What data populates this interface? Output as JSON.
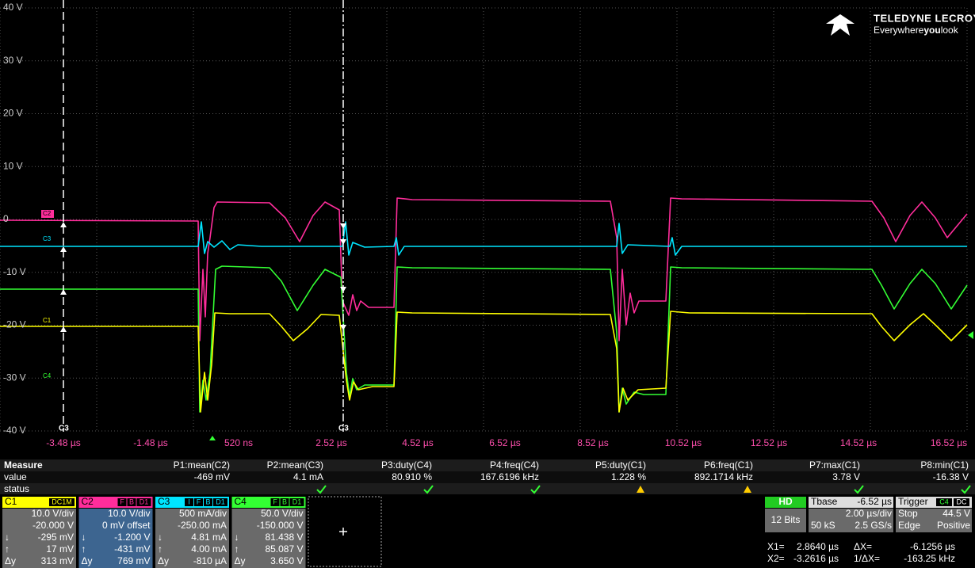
{
  "logo": {
    "brand": "TELEDYNE LECROY",
    "tagline": [
      "Everywhere",
      "you",
      "look"
    ]
  },
  "grid": {
    "y_labels": [
      "40 V",
      "30 V",
      "20 V",
      "10 V",
      "0",
      "-10 V",
      "-20 V",
      "-30 V",
      "-40 V"
    ],
    "x_labels": [
      "-3.48 µs",
      "-1.48 µs",
      "520 ns",
      "2.52 µs",
      "4.52 µs",
      "6.52 µs",
      "8.52 µs",
      "10.52 µs",
      "12.52 µs",
      "14.52 µs",
      "16.52 µs"
    ]
  },
  "trace_labels": [
    "C2",
    "C3",
    "C1",
    "C4"
  ],
  "cursor_labels": [
    "C3",
    "C3"
  ],
  "measure": {
    "header": [
      "Measure",
      "P1:mean(C2)",
      "P2:mean(C3)",
      "P3:duty(C4)",
      "P4:freq(C4)",
      "P5:duty(C1)",
      "P6:freq(C1)",
      "P7:max(C1)",
      "P8:min(C1)"
    ],
    "value": [
      "value",
      "-469 mV",
      "4.1 mA",
      "80.910 %",
      "167.6196 kHz",
      "1.228 %",
      "892.1714 kHz",
      "3.78 V",
      "-16.38 V"
    ],
    "status": "status"
  },
  "channels": [
    {
      "name": "C1",
      "badges": [
        "DC1M"
      ],
      "rows": [
        [
          "10.0 V/div"
        ],
        [
          "-20.000 V"
        ],
        [
          "↓",
          "-295 mV"
        ],
        [
          "↑",
          "17 mV"
        ],
        [
          "Δy",
          "313 mV"
        ]
      ]
    },
    {
      "name": "C2",
      "badges": [
        "F",
        "B",
        "D1"
      ],
      "rows": [
        [
          "10.0 V/div"
        ],
        [
          "0 mV offset"
        ],
        [
          "↓",
          "-1.200 V"
        ],
        [
          "↑",
          "-431 mV"
        ],
        [
          "Δy",
          "769 mV"
        ]
      ]
    },
    {
      "name": "C3",
      "badges": [
        "I",
        "F",
        "B",
        "D1"
      ],
      "rows": [
        [
          "500 mA/div"
        ],
        [
          "-250.00 mA"
        ],
        [
          "↓",
          "4.81 mA"
        ],
        [
          "↑",
          "4.00 mA"
        ],
        [
          "Δy",
          "-810 µA"
        ]
      ]
    },
    {
      "name": "C4",
      "badges": [
        "F",
        "B",
        "D1"
      ],
      "rows": [
        [
          "50.0 V/div"
        ],
        [
          "-150.000 V"
        ],
        [
          "↓",
          "81.438 V"
        ],
        [
          "↑",
          "85.087 V"
        ],
        [
          "Δy",
          "3.650 V"
        ]
      ]
    }
  ],
  "acquisition": {
    "mode": "HD",
    "bits": "12 Bits"
  },
  "timebase": {
    "title": "Tbase",
    "delay": "-6.52 µs",
    "rows": [
      [
        "2.00 µs/div"
      ],
      [
        "50 kS",
        "2.5 GS/s"
      ]
    ]
  },
  "trigger": {
    "title": "Trigger",
    "badges": [
      "C4",
      "DC"
    ],
    "rows": [
      [
        "Stop",
        "44.5 V"
      ],
      [
        "Edge",
        "Positive"
      ]
    ]
  },
  "cursors": [
    [
      "X1=",
      "2.8640 µs",
      "ΔX=",
      "-6.1256 µs"
    ],
    [
      "X2=",
      "-3.2616 µs",
      "1/ΔX=",
      "-163.25 kHz"
    ]
  ]
}
